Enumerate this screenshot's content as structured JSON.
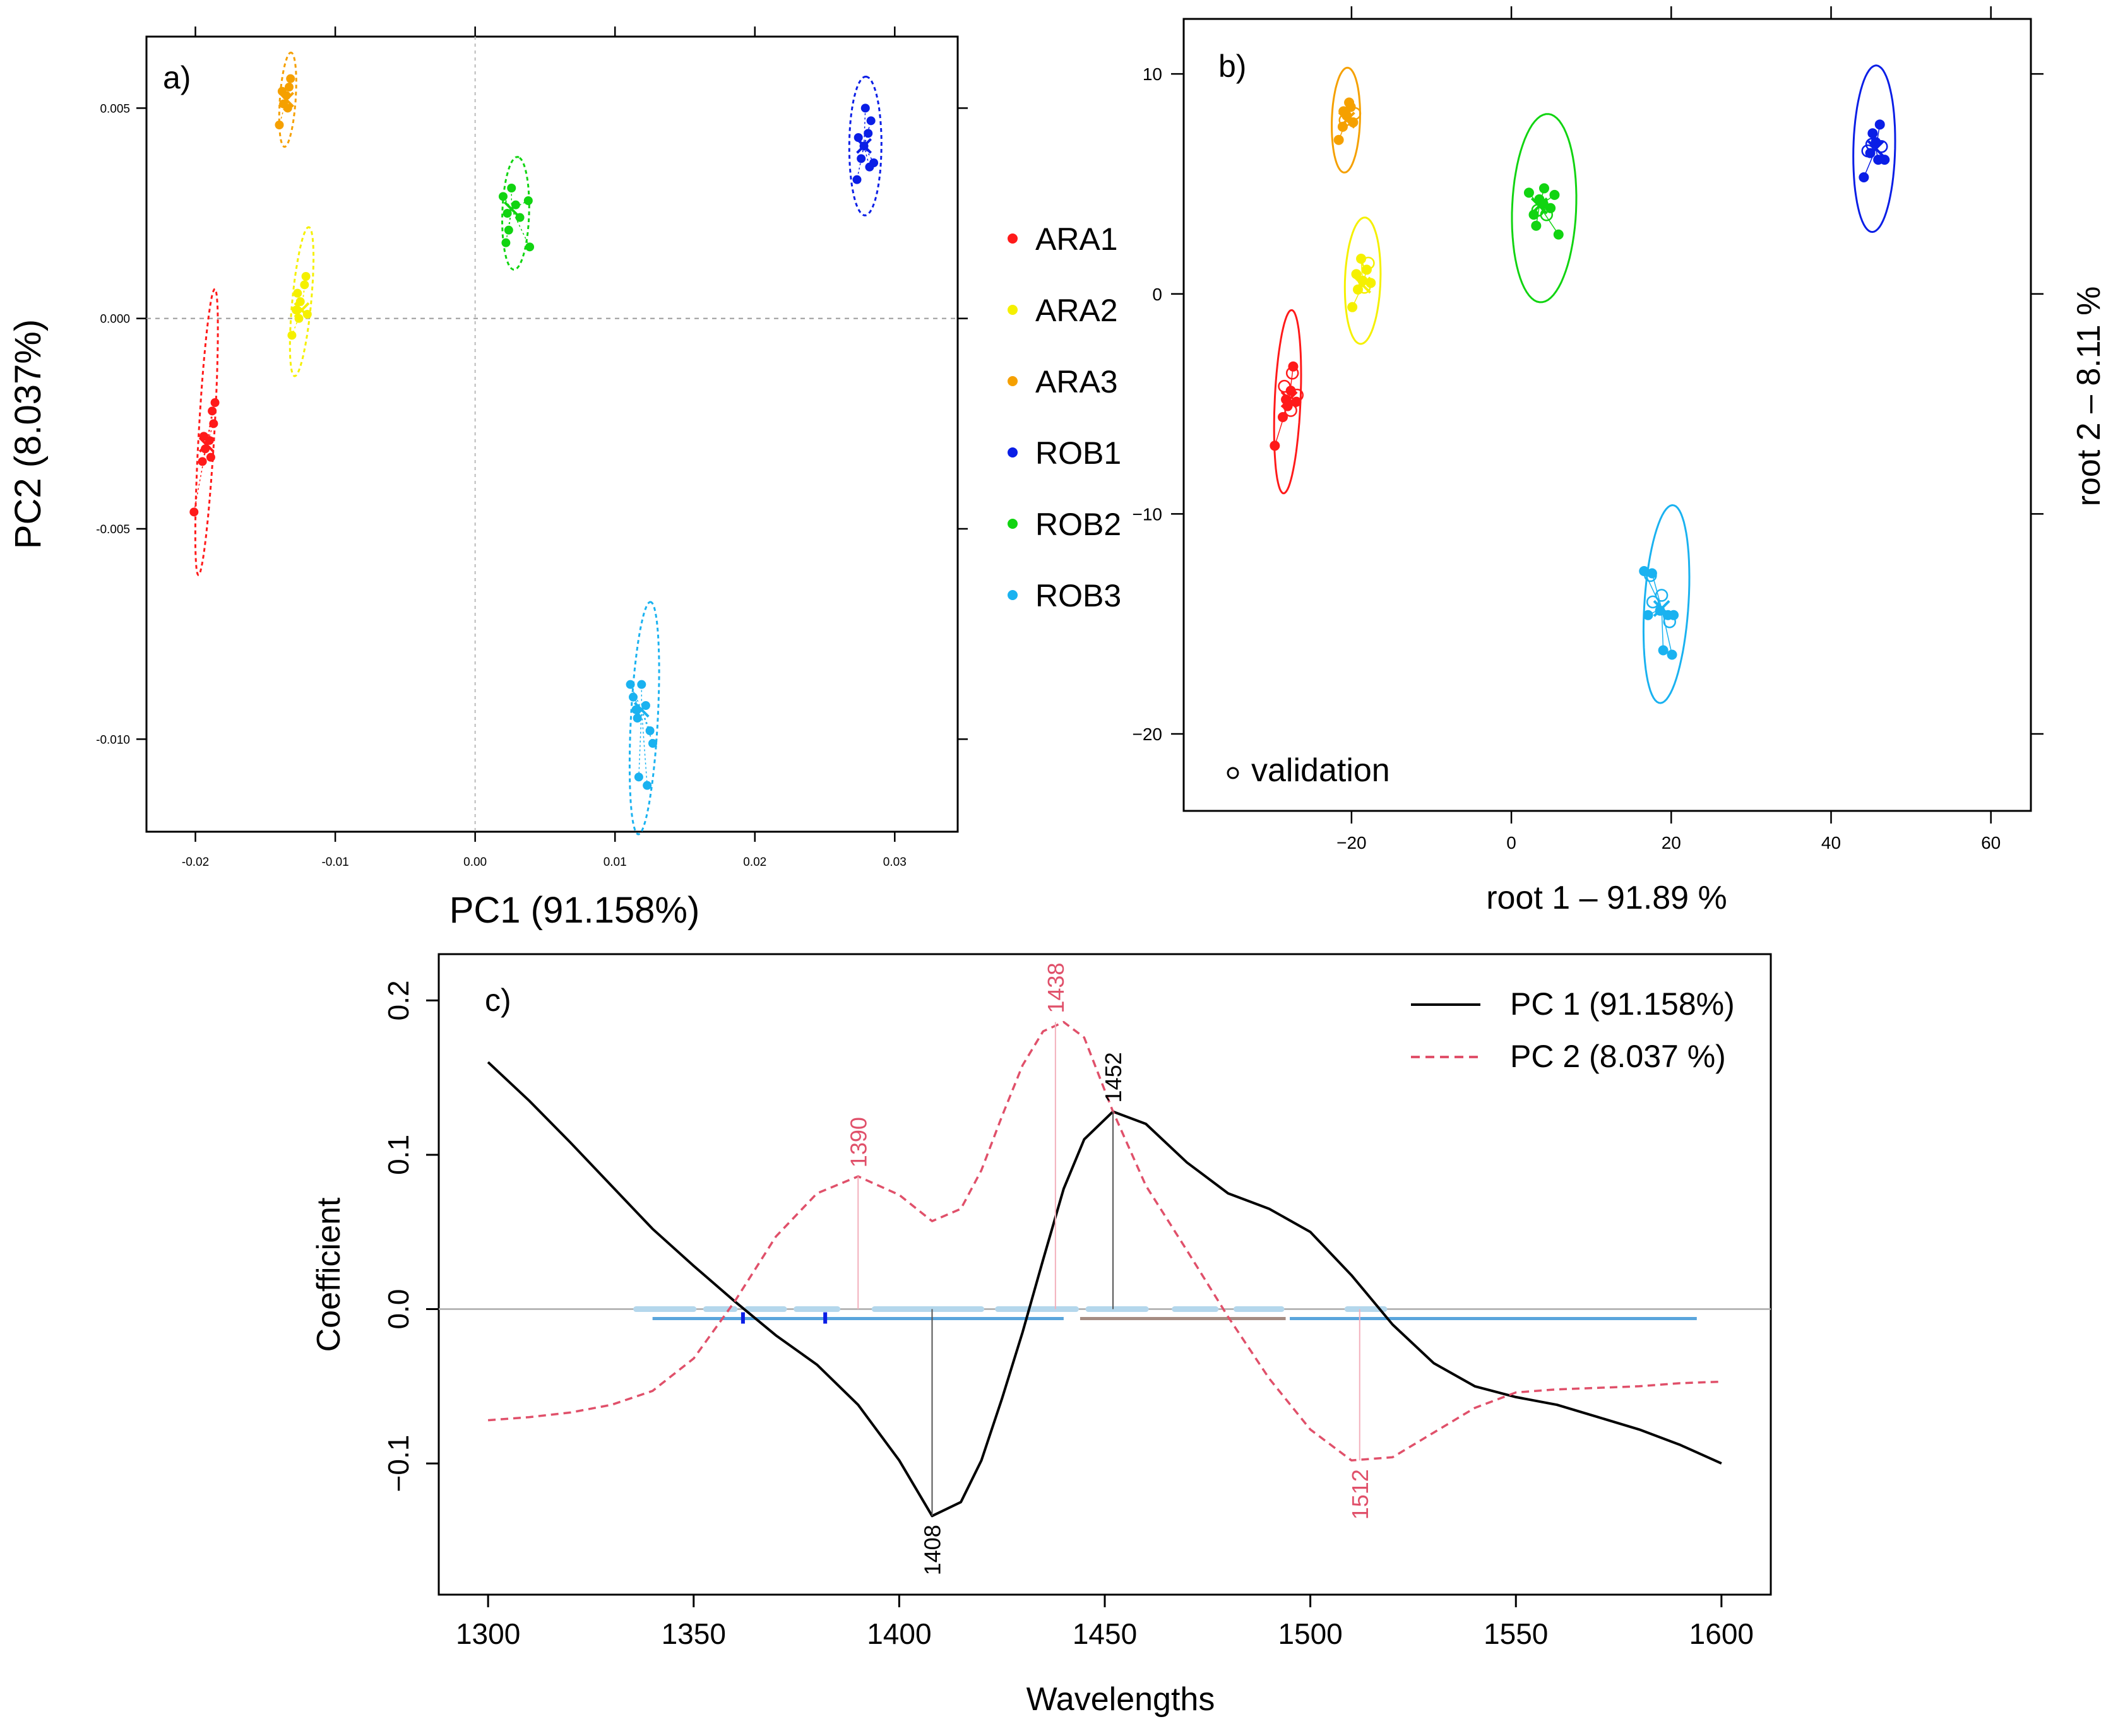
{
  "chart_data": [
    {
      "panel": "a",
      "type": "scatter",
      "panel_label": "a)",
      "xlabel": "PC1 (91.158%)",
      "ylabel": "PC2 (8.037%)",
      "xlim": [
        -0.0235,
        0.0345
      ],
      "ylim": [
        -0.0122,
        0.0067
      ],
      "x_ticks": [
        "-0.02",
        "-0.01",
        "0.00",
        "0.01",
        "0.02",
        "0.03"
      ],
      "y_ticks": [
        "-0.010",
        "-0.005",
        "0.000",
        "0.005"
      ],
      "reference_lines": {
        "x": 0,
        "y": 0,
        "style": "dotted"
      },
      "ellipse_style": "dashed",
      "legend": {
        "entries": [
          "ARA1",
          "ARA2",
          "ARA3",
          "ROB1",
          "ROB2",
          "ROB3"
        ],
        "placement": "right of panel a"
      },
      "series": [
        {
          "name": "ARA1",
          "color": "#ff1a1a",
          "centroid": [
            -0.0192,
            -0.003
          ],
          "points": [
            [
              -0.0201,
              -0.0046
            ],
            [
              -0.0195,
              -0.0034
            ],
            [
              -0.0193,
              -0.0031
            ],
            [
              -0.019,
              -0.0029
            ],
            [
              -0.0188,
              -0.0022
            ],
            [
              -0.0186,
              -0.002
            ],
            [
              -0.0187,
              -0.0025
            ],
            [
              -0.0194,
              -0.0028
            ],
            [
              -0.0189,
              -0.0033
            ]
          ],
          "ellipse": {
            "center": [
              -0.0192,
              -0.0027
            ],
            "semi_major": 0.00345,
            "semi_minor": 0.00055,
            "angle_deg": 80
          }
        },
        {
          "name": "ARA2",
          "color": "#f5f000",
          "centroid": [
            -0.0124,
            0.0002
          ],
          "points": [
            [
              -0.0131,
              -0.0004
            ],
            [
              -0.0128,
              0.0002
            ],
            [
              -0.0125,
              0.0004
            ],
            [
              -0.0122,
              0.0008
            ],
            [
              -0.0121,
              0.001
            ],
            [
              -0.0126,
              0.0
            ],
            [
              -0.012,
              0.0001
            ],
            [
              -0.0127,
              0.0006
            ]
          ],
          "ellipse": {
            "center": [
              -0.0124,
              0.0004
            ],
            "semi_major": 0.00185,
            "semi_minor": 0.00065,
            "angle_deg": 72
          }
        },
        {
          "name": "ARA3",
          "color": "#f5a000",
          "centroid": [
            -0.0135,
            0.0052
          ],
          "points": [
            [
              -0.014,
              0.0046
            ],
            [
              -0.0137,
              0.0051
            ],
            [
              -0.0135,
              0.0053
            ],
            [
              -0.0133,
              0.0055
            ],
            [
              -0.0132,
              0.0057
            ],
            [
              -0.0138,
              0.0054
            ],
            [
              -0.0134,
              0.005
            ]
          ],
          "ellipse": {
            "center": [
              -0.0134,
              0.0052
            ],
            "semi_major": 0.00115,
            "semi_minor": 0.00055,
            "angle_deg": 75
          }
        },
        {
          "name": "ROB1",
          "color": "#0a1ee6",
          "centroid": [
            0.0278,
            0.0041
          ],
          "points": [
            [
              0.0273,
              0.0033
            ],
            [
              0.0276,
              0.0038
            ],
            [
              0.0278,
              0.0041
            ],
            [
              0.0281,
              0.0044
            ],
            [
              0.0283,
              0.0047
            ],
            [
              0.0285,
              0.0037
            ],
            [
              0.0279,
              0.005
            ],
            [
              0.0274,
              0.0043
            ],
            [
              0.0282,
              0.0036
            ]
          ],
          "ellipse": {
            "center": [
              0.0279,
              0.0041
            ],
            "semi_major": 0.00165,
            "semi_minor": 0.00115,
            "angle_deg": 88
          }
        },
        {
          "name": "ROB2",
          "color": "#11d411",
          "centroid": [
            0.0026,
            0.0026
          ],
          "points": [
            [
              0.002,
              0.0029
            ],
            [
              0.0023,
              0.0025
            ],
            [
              0.0026,
              0.0031
            ],
            [
              0.0029,
              0.0027
            ],
            [
              0.0032,
              0.0024
            ],
            [
              0.0038,
              0.0028
            ],
            [
              0.0039,
              0.0017
            ],
            [
              0.0024,
              0.0021
            ],
            [
              0.0022,
              0.0018
            ]
          ],
          "ellipse": {
            "center": [
              0.0029,
              0.0025
            ],
            "semi_major": 0.00135,
            "semi_minor": 0.00095,
            "angle_deg": 80
          }
        },
        {
          "name": "ROB3",
          "color": "#1ab2f0",
          "centroid": [
            0.0119,
            -0.0093
          ],
          "points": [
            [
              0.0111,
              -0.0087
            ],
            [
              0.0113,
              -0.009
            ],
            [
              0.0116,
              -0.0095
            ],
            [
              0.0119,
              -0.0087
            ],
            [
              0.0122,
              -0.0092
            ],
            [
              0.0125,
              -0.0098
            ],
            [
              0.0127,
              -0.0101
            ],
            [
              0.0117,
              -0.0109
            ],
            [
              0.0123,
              -0.0111
            ],
            [
              0.0115,
              -0.0093
            ]
          ],
          "ellipse": {
            "center": [
              0.0121,
              -0.0095
            ],
            "semi_major": 0.0028,
            "semi_minor": 0.00095,
            "angle_deg": 80
          }
        }
      ]
    },
    {
      "panel": "b",
      "type": "scatter",
      "panel_label": "b)",
      "xlabel": "root 1 – 91.89 %",
      "ylabel": "root 2 – 8.11 %",
      "xlim": [
        -41,
        65
      ],
      "ylim": [
        -23.5,
        12.5
      ],
      "x_ticks": [
        "−20",
        "0",
        "20",
        "40",
        "60"
      ],
      "y_ticks": [
        "−20",
        "−10",
        "0",
        "10"
      ],
      "validation_label": "validation",
      "ellipse_style": "solid",
      "series": [
        {
          "name": "ARA1",
          "color": "#ff1a1a",
          "centroid": [
            -27.8,
            -4.8
          ],
          "points": [
            [
              -29.6,
              -6.9
            ],
            [
              -28.6,
              -5.6
            ],
            [
              -28.2,
              -4.8
            ],
            [
              -27.6,
              -4.4
            ],
            [
              -27.3,
              -3.3
            ],
            [
              -26.9,
              -4.9
            ],
            [
              -28.0,
              -5.1
            ]
          ],
          "validation": [
            [
              -27.4,
              -3.6
            ],
            [
              -28.4,
              -4.2
            ],
            [
              -27.6,
              -5.3
            ],
            [
              -26.8,
              -4.6
            ]
          ],
          "ellipse": {
            "center": [
              -28.0,
              -4.9
            ],
            "semi_major": 4.2,
            "semi_minor": 1.6,
            "angle_deg": 82
          }
        },
        {
          "name": "ARA2",
          "color": "#f5f000",
          "centroid": [
            -18.6,
            0.4
          ],
          "points": [
            [
              -19.9,
              -0.6
            ],
            [
              -19.2,
              0.2
            ],
            [
              -18.6,
              0.6
            ],
            [
              -18.1,
              1.1
            ],
            [
              -17.6,
              0.5
            ],
            [
              -18.8,
              1.6
            ],
            [
              -19.4,
              0.9
            ]
          ],
          "validation": [
            [
              -18.4,
              0.3
            ],
            [
              -17.9,
              1.4
            ]
          ],
          "ellipse": {
            "center": [
              -18.6,
              0.6
            ],
            "semi_major": 2.9,
            "semi_minor": 2.2,
            "angle_deg": 78
          }
        },
        {
          "name": "ARA3",
          "color": "#f5a000",
          "centroid": [
            -20.6,
            7.9
          ],
          "points": [
            [
              -21.6,
              7.0
            ],
            [
              -21.1,
              7.6
            ],
            [
              -20.6,
              8.1
            ],
            [
              -20.1,
              8.5
            ],
            [
              -19.8,
              7.8
            ],
            [
              -21.0,
              8.3
            ],
            [
              -20.3,
              8.7
            ]
          ],
          "validation": [
            [
              -20.8,
              7.9
            ],
            [
              -19.6,
              8.2
            ]
          ],
          "ellipse": {
            "center": [
              -20.7,
              7.9
            ],
            "semi_major": 2.4,
            "semi_minor": 1.75,
            "angle_deg": 80
          }
        },
        {
          "name": "ROB1",
          "color": "#0a1ee6",
          "centroid": [
            45.6,
            6.6
          ],
          "points": [
            [
              44.1,
              5.3
            ],
            [
              44.9,
              6.4
            ],
            [
              45.6,
              6.9
            ],
            [
              46.1,
              7.7
            ],
            [
              46.7,
              6.1
            ],
            [
              45.2,
              7.3
            ],
            [
              45.9,
              6.1
            ]
          ],
          "validation": [
            [
              45.1,
              6.8
            ],
            [
              46.3,
              6.7
            ],
            [
              44.6,
              6.5
            ]
          ],
          "ellipse": {
            "center": [
              45.4,
              6.6
            ],
            "semi_major": 3.8,
            "semi_minor": 2.6,
            "angle_deg": 83
          }
        },
        {
          "name": "ROB2",
          "color": "#11d411",
          "centroid": [
            3.5,
            4.0
          ],
          "points": [
            [
              2.2,
              4.6
            ],
            [
              2.8,
              3.6
            ],
            [
              3.5,
              4.3
            ],
            [
              4.1,
              4.8
            ],
            [
              4.9,
              3.9
            ],
            [
              5.4,
              4.5
            ],
            [
              5.9,
              2.7
            ],
            [
              3.1,
              3.1
            ],
            [
              4.0,
              4.1
            ]
          ],
          "validation": [
            [
              3.3,
              3.8
            ],
            [
              4.4,
              3.6
            ]
          ],
          "ellipse": {
            "center": [
              4.1,
              3.9
            ],
            "semi_major": 4.4,
            "semi_minor": 3.9,
            "angle_deg": 60
          }
        },
        {
          "name": "ROB3",
          "color": "#1ab2f0",
          "centroid": [
            18.8,
            -14.3
          ],
          "points": [
            [
              16.6,
              -12.6
            ],
            [
              17.6,
              -12.7
            ],
            [
              17.1,
              -14.6
            ],
            [
              18.6,
              -14.4
            ],
            [
              19.6,
              -14.6
            ],
            [
              19.0,
              -16.2
            ],
            [
              20.1,
              -16.4
            ],
            [
              20.3,
              -14.6
            ]
          ],
          "validation": [
            [
              17.4,
              -12.8
            ],
            [
              18.8,
              -13.7
            ],
            [
              19.8,
              -14.9
            ],
            [
              17.7,
              -14.0
            ]
          ],
          "ellipse": {
            "center": [
              19.4,
              -14.1
            ],
            "semi_major": 4.6,
            "semi_minor": 2.7,
            "angle_deg": 75
          }
        }
      ]
    },
    {
      "panel": "c",
      "type": "line",
      "panel_label": "c)",
      "xlabel": "Wavelengths",
      "ylabel": "Coefficient",
      "xlim": [
        1288,
        1612
      ],
      "ylim": [
        -0.185,
        0.23
      ],
      "x_ticks": [
        "1300",
        "1350",
        "1400",
        "1450",
        "1500",
        "1550",
        "1600"
      ],
      "y_ticks": [
        "−0.1",
        "0.0",
        "0.1",
        "0.2"
      ],
      "legend": {
        "placement": "top-right",
        "entries": [
          "PC 1 (91.158%)",
          "PC 2 (8.037 %)"
        ]
      },
      "x": [
        1300,
        1310,
        1320,
        1330,
        1340,
        1350,
        1360,
        1370,
        1380,
        1390,
        1400,
        1408,
        1415,
        1420,
        1425,
        1430,
        1435,
        1440,
        1445,
        1452,
        1460,
        1470,
        1480,
        1490,
        1500,
        1510,
        1520,
        1530,
        1540,
        1550,
        1560,
        1570,
        1580,
        1590,
        1600
      ],
      "series": [
        {
          "name": "PC 1 (91.158%)",
          "color": "#000000",
          "style": "solid",
          "values": [
            0.16,
            0.135,
            0.108,
            0.08,
            0.052,
            0.028,
            0.005,
            -0.017,
            -0.036,
            -0.062,
            -0.098,
            -0.134,
            -0.125,
            -0.098,
            -0.058,
            -0.015,
            0.032,
            0.078,
            0.11,
            0.128,
            0.12,
            0.095,
            0.075,
            0.065,
            0.05,
            0.022,
            -0.01,
            -0.035,
            -0.05,
            -0.057,
            -0.062,
            -0.07,
            -0.078,
            -0.088,
            -0.1
          ]
        },
        {
          "name": "PC 2 (8.037 %)",
          "color": "#e0506a",
          "style": "dashed",
          "values": [
            -0.072,
            -0.07,
            -0.067,
            -0.062,
            -0.053,
            -0.032,
            0.005,
            0.047,
            0.075,
            0.086,
            0.074,
            0.057,
            0.065,
            0.09,
            0.125,
            0.158,
            0.18,
            0.186,
            0.176,
            0.128,
            0.08,
            0.038,
            -0.005,
            -0.045,
            -0.078,
            -0.098,
            -0.096,
            -0.08,
            -0.064,
            -0.054,
            -0.052,
            -0.051,
            -0.05,
            -0.048,
            -0.047
          ]
        }
      ],
      "peak_labels": [
        {
          "label": "1390",
          "x": 1390,
          "y": 0.086,
          "color": "#e0506a",
          "position": "above"
        },
        {
          "label": "1438",
          "x": 1438,
          "y": 0.186,
          "color": "#e0506a",
          "position": "above"
        },
        {
          "label": "1452",
          "x": 1452,
          "y": 0.128,
          "color": "#000000",
          "position": "above"
        },
        {
          "label": "1408",
          "x": 1408,
          "y": -0.134,
          "color": "#000000",
          "position": "below"
        },
        {
          "label": "1512",
          "x": 1512,
          "y": -0.098,
          "color": "#e0506a",
          "position": "below"
        }
      ],
      "baseline_bars": {
        "dashed_segments": [
          [
            1336,
            1350
          ],
          [
            1353,
            1360
          ],
          [
            1363,
            1372
          ],
          [
            1375,
            1385
          ],
          [
            1394,
            1420
          ],
          [
            1424,
            1443
          ],
          [
            1446,
            1460
          ],
          [
            1467,
            1477
          ],
          [
            1482,
            1493
          ],
          [
            1509,
            1518
          ]
        ],
        "solid_segments": [
          {
            "range": [
              1340,
              1440
            ],
            "color": "#5aa5dc"
          },
          {
            "range": [
              1444,
              1494
            ],
            "color": "#a58c82"
          },
          {
            "range": [
              1495,
              1594
            ],
            "color": "#5aa5dc"
          }
        ],
        "markers": [
          1362,
          1382
        ]
      }
    }
  ]
}
